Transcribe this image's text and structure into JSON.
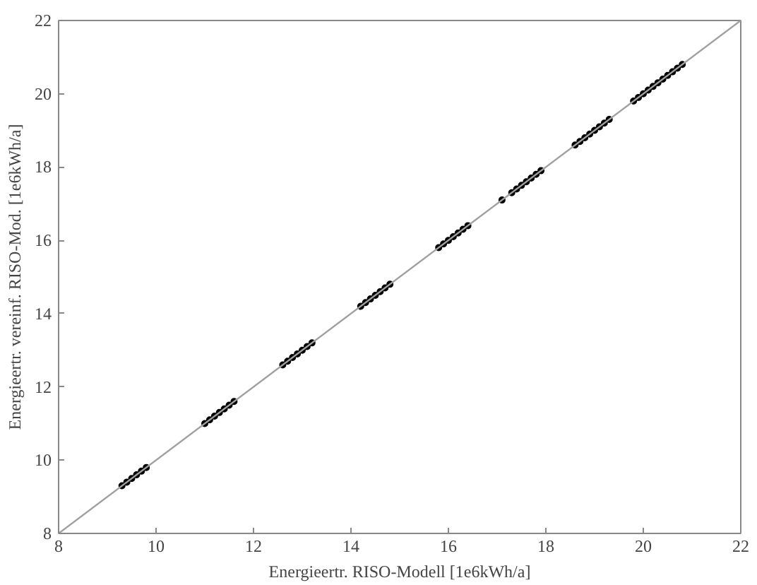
{
  "chart_data": {
    "type": "scatter",
    "xlabel": "Energieertr. RISO-Modell [1e6kWh/a]",
    "ylabel": "Energieertr. vereinf. RISO-Mod. [1e6kWh/a]",
    "xlim": [
      8,
      22
    ],
    "ylim": [
      8,
      22
    ],
    "xticks": [
      8,
      10,
      12,
      14,
      16,
      18,
      20,
      22
    ],
    "yticks": [
      8,
      10,
      12,
      14,
      16,
      18,
      20,
      22
    ],
    "grid": false,
    "series": [
      {
        "color": "#000000",
        "marker": "circle",
        "x": [
          9.3,
          9.4,
          9.5,
          9.6,
          9.7,
          9.8,
          11.0,
          11.1,
          11.2,
          11.3,
          11.4,
          11.5,
          11.6,
          12.6,
          12.7,
          12.8,
          12.9,
          13.0,
          13.1,
          13.2,
          14.2,
          14.3,
          14.4,
          14.5,
          14.6,
          14.7,
          14.8,
          15.8,
          15.9,
          16.0,
          16.1,
          16.2,
          16.3,
          16.4,
          17.1,
          17.3,
          17.4,
          17.5,
          17.6,
          17.7,
          17.8,
          17.9,
          18.6,
          18.7,
          18.8,
          18.9,
          19.0,
          19.1,
          19.2,
          19.3,
          19.8,
          19.9,
          20.0,
          20.1,
          20.2,
          20.3,
          20.4,
          20.5,
          20.6,
          20.7,
          20.8
        ],
        "values": [
          9.3,
          9.4,
          9.5,
          9.6,
          9.7,
          9.8,
          11.0,
          11.1,
          11.2,
          11.3,
          11.4,
          11.5,
          11.6,
          12.6,
          12.7,
          12.8,
          12.9,
          13.0,
          13.1,
          13.2,
          14.2,
          14.3,
          14.4,
          14.5,
          14.6,
          14.7,
          14.8,
          15.8,
          15.9,
          16.0,
          16.1,
          16.2,
          16.3,
          16.4,
          17.1,
          17.3,
          17.4,
          17.5,
          17.6,
          17.7,
          17.8,
          17.9,
          18.6,
          18.7,
          18.8,
          18.9,
          19.0,
          19.1,
          19.2,
          19.3,
          19.8,
          19.9,
          20.0,
          20.1,
          20.2,
          20.3,
          20.4,
          20.5,
          20.6,
          20.7,
          20.8
        ]
      },
      {
        "type": "line",
        "color": "#a0a0a0",
        "marker": "none",
        "x": [
          8,
          22
        ],
        "values": [
          8,
          22
        ]
      }
    ]
  }
}
